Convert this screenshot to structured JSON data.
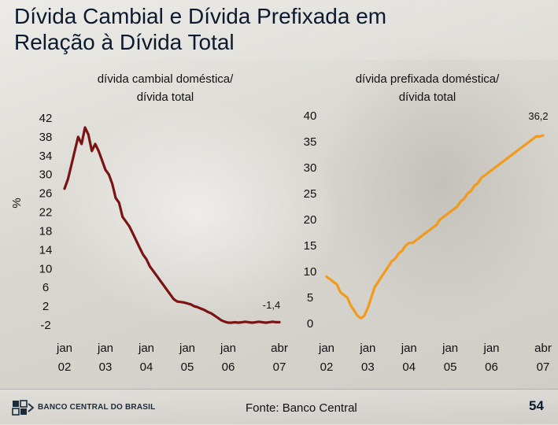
{
  "slide": {
    "title_line1": "Dívida Cambial e Dívida Prefixada em",
    "title_line2": "Relação à Dívida Total",
    "source": "Fonte: Banco Central",
    "page_number": "54",
    "logo_text": "BANCO CENTRAL DO BRASIL"
  },
  "chart_data": [
    {
      "type": "line",
      "subtitle_line1": "dívida cambial doméstica/",
      "subtitle_line2": "dívida total",
      "ylabel": "%",
      "ylim": [
        -2,
        42
      ],
      "yticks": [
        42,
        38,
        34,
        30,
        26,
        22,
        18,
        14,
        10,
        6,
        2,
        -2
      ],
      "xticks": [
        {
          "top": "jan",
          "bottom": "02",
          "t": 0
        },
        {
          "top": "jan",
          "bottom": "03",
          "t": 12
        },
        {
          "top": "jan",
          "bottom": "04",
          "t": 24
        },
        {
          "top": "jan",
          "bottom": "05",
          "t": 36
        },
        {
          "top": "jan",
          "bottom": "06",
          "t": 48
        },
        {
          "top": "abr",
          "bottom": "07",
          "t": 63
        }
      ],
      "color": "#7a1414",
      "end_annotation": "-1,4",
      "series": [
        {
          "x": [
            0,
            1,
            2,
            3,
            4,
            5,
            6,
            7,
            8,
            9,
            10,
            11,
            12,
            13,
            14,
            15,
            16,
            17,
            18,
            19,
            20,
            21,
            22,
            23,
            24,
            25,
            26,
            27,
            28,
            29,
            30,
            31,
            32,
            33,
            34,
            35,
            36,
            37,
            38,
            39,
            40,
            41,
            42,
            43,
            44,
            45,
            46,
            47,
            48,
            49,
            50,
            51,
            52,
            53,
            54,
            55,
            56,
            57,
            58,
            59,
            60,
            61,
            62,
            63
          ],
          "values": [
            27,
            29,
            32,
            35,
            38,
            36.5,
            40,
            38.5,
            35,
            36.5,
            35,
            33,
            31,
            30,
            28,
            25,
            24,
            21,
            20,
            19,
            17.5,
            16,
            14.5,
            13,
            12,
            10.5,
            9.5,
            8.5,
            7.5,
            6.5,
            5.5,
            4.5,
            3.5,
            3,
            2.9,
            2.8,
            2.6,
            2.4,
            2,
            1.8,
            1.5,
            1.2,
            0.8,
            0.5,
            0,
            -0.5,
            -1,
            -1.3,
            -1.5,
            -1.5,
            -1.4,
            -1.5,
            -1.4,
            -1.3,
            -1.4,
            -1.5,
            -1.4,
            -1.3,
            -1.4,
            -1.5,
            -1.4,
            -1.3,
            -1.4,
            -1.4
          ]
        }
      ]
    },
    {
      "type": "line",
      "subtitle_line1": "dívida prefixada doméstica/",
      "subtitle_line2": "dívida total",
      "ylim": [
        0,
        40
      ],
      "yticks": [
        40,
        35,
        30,
        25,
        20,
        15,
        10,
        5,
        0
      ],
      "xticks": [
        {
          "top": "jan",
          "bottom": "02",
          "t": 0
        },
        {
          "top": "jan",
          "bottom": "03",
          "t": 12
        },
        {
          "top": "jan",
          "bottom": "04",
          "t": 24
        },
        {
          "top": "jan",
          "bottom": "05",
          "t": 36
        },
        {
          "top": "jan",
          "bottom": "06",
          "t": 48
        },
        {
          "top": "abr",
          "bottom": "07",
          "t": 63
        }
      ],
      "color": "#f29a1b",
      "end_annotation": "36,2",
      "series": [
        {
          "x": [
            0,
            1,
            2,
            3,
            4,
            5,
            6,
            7,
            8,
            9,
            10,
            11,
            12,
            13,
            14,
            15,
            16,
            17,
            18,
            19,
            20,
            21,
            22,
            23,
            24,
            25,
            26,
            27,
            28,
            29,
            30,
            31,
            32,
            33,
            34,
            35,
            36,
            37,
            38,
            39,
            40,
            41,
            42,
            43,
            44,
            45,
            46,
            47,
            48,
            49,
            50,
            51,
            52,
            53,
            54,
            55,
            56,
            57,
            58,
            59,
            60,
            61,
            62,
            63
          ],
          "values": [
            9,
            8.5,
            8,
            7.5,
            6,
            5.5,
            5,
            3.5,
            2.5,
            1.5,
            1,
            1.5,
            3,
            5,
            7,
            8,
            9,
            10,
            11,
            12,
            12.5,
            13.5,
            14,
            15,
            15.5,
            15.5,
            16,
            16.5,
            17,
            17.5,
            18,
            18.5,
            19,
            20,
            20.5,
            21,
            21.5,
            22,
            22.5,
            23.5,
            24,
            25,
            25.5,
            26.5,
            27,
            28,
            28.5,
            29,
            29.5,
            30,
            30.5,
            31,
            31.5,
            32,
            32.5,
            33,
            33.5,
            34,
            34.5,
            35,
            35.5,
            36,
            36,
            36.2
          ]
        }
      ]
    }
  ]
}
